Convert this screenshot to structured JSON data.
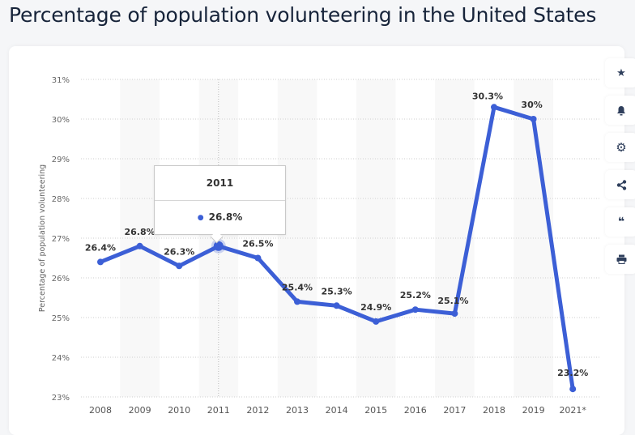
{
  "page": {
    "title": "Percentage of population volunteering in the United States"
  },
  "toolbar": {
    "buttons": [
      {
        "name": "favorite",
        "icon": "star-icon",
        "glyph": "★"
      },
      {
        "name": "notification",
        "icon": "bell-icon",
        "glyph": "🔔"
      },
      {
        "name": "settings",
        "icon": "gear-icon",
        "glyph": "⚙"
      },
      {
        "name": "share",
        "icon": "share-icon",
        "glyph": "<"
      },
      {
        "name": "cite",
        "icon": "quote-icon",
        "glyph": "“"
      },
      {
        "name": "print",
        "icon": "print-icon",
        "glyph": "⎙"
      }
    ]
  },
  "tooltip": {
    "category": "2011",
    "value_label": "26.8%"
  },
  "chart_data": {
    "type": "line",
    "title": "Percentage of population volunteering in the United States",
    "xlabel": "",
    "ylabel": "Percentage of population volunteering",
    "categories": [
      "2008",
      "2009",
      "2010",
      "2011",
      "2012",
      "2013",
      "2014",
      "2015",
      "2016",
      "2017",
      "2018",
      "2019",
      "2021*"
    ],
    "series": [
      {
        "name": "Percentage of population volunteering",
        "values": [
          26.4,
          26.8,
          26.3,
          26.8,
          26.5,
          25.4,
          25.3,
          24.9,
          25.2,
          25.1,
          30.3,
          30.0,
          23.2
        ],
        "labels": [
          "26.4%",
          "26.8%",
          "26.3%",
          "26.8%",
          "26.5%",
          "25.4%",
          "25.3%",
          "24.9%",
          "25.2%",
          "25.1%",
          "30.3%",
          "30%",
          "23.2%"
        ],
        "color": "#3c5fd6"
      }
    ],
    "yticks": [
      23,
      24,
      25,
      26,
      27,
      28,
      29,
      30,
      31
    ],
    "ytick_labels": [
      "23%",
      "24%",
      "25%",
      "26%",
      "27%",
      "28%",
      "29%",
      "30%",
      "31%"
    ],
    "ylim": [
      23,
      31
    ],
    "grid": true,
    "highlighted_category": "2011",
    "legend": "none"
  }
}
